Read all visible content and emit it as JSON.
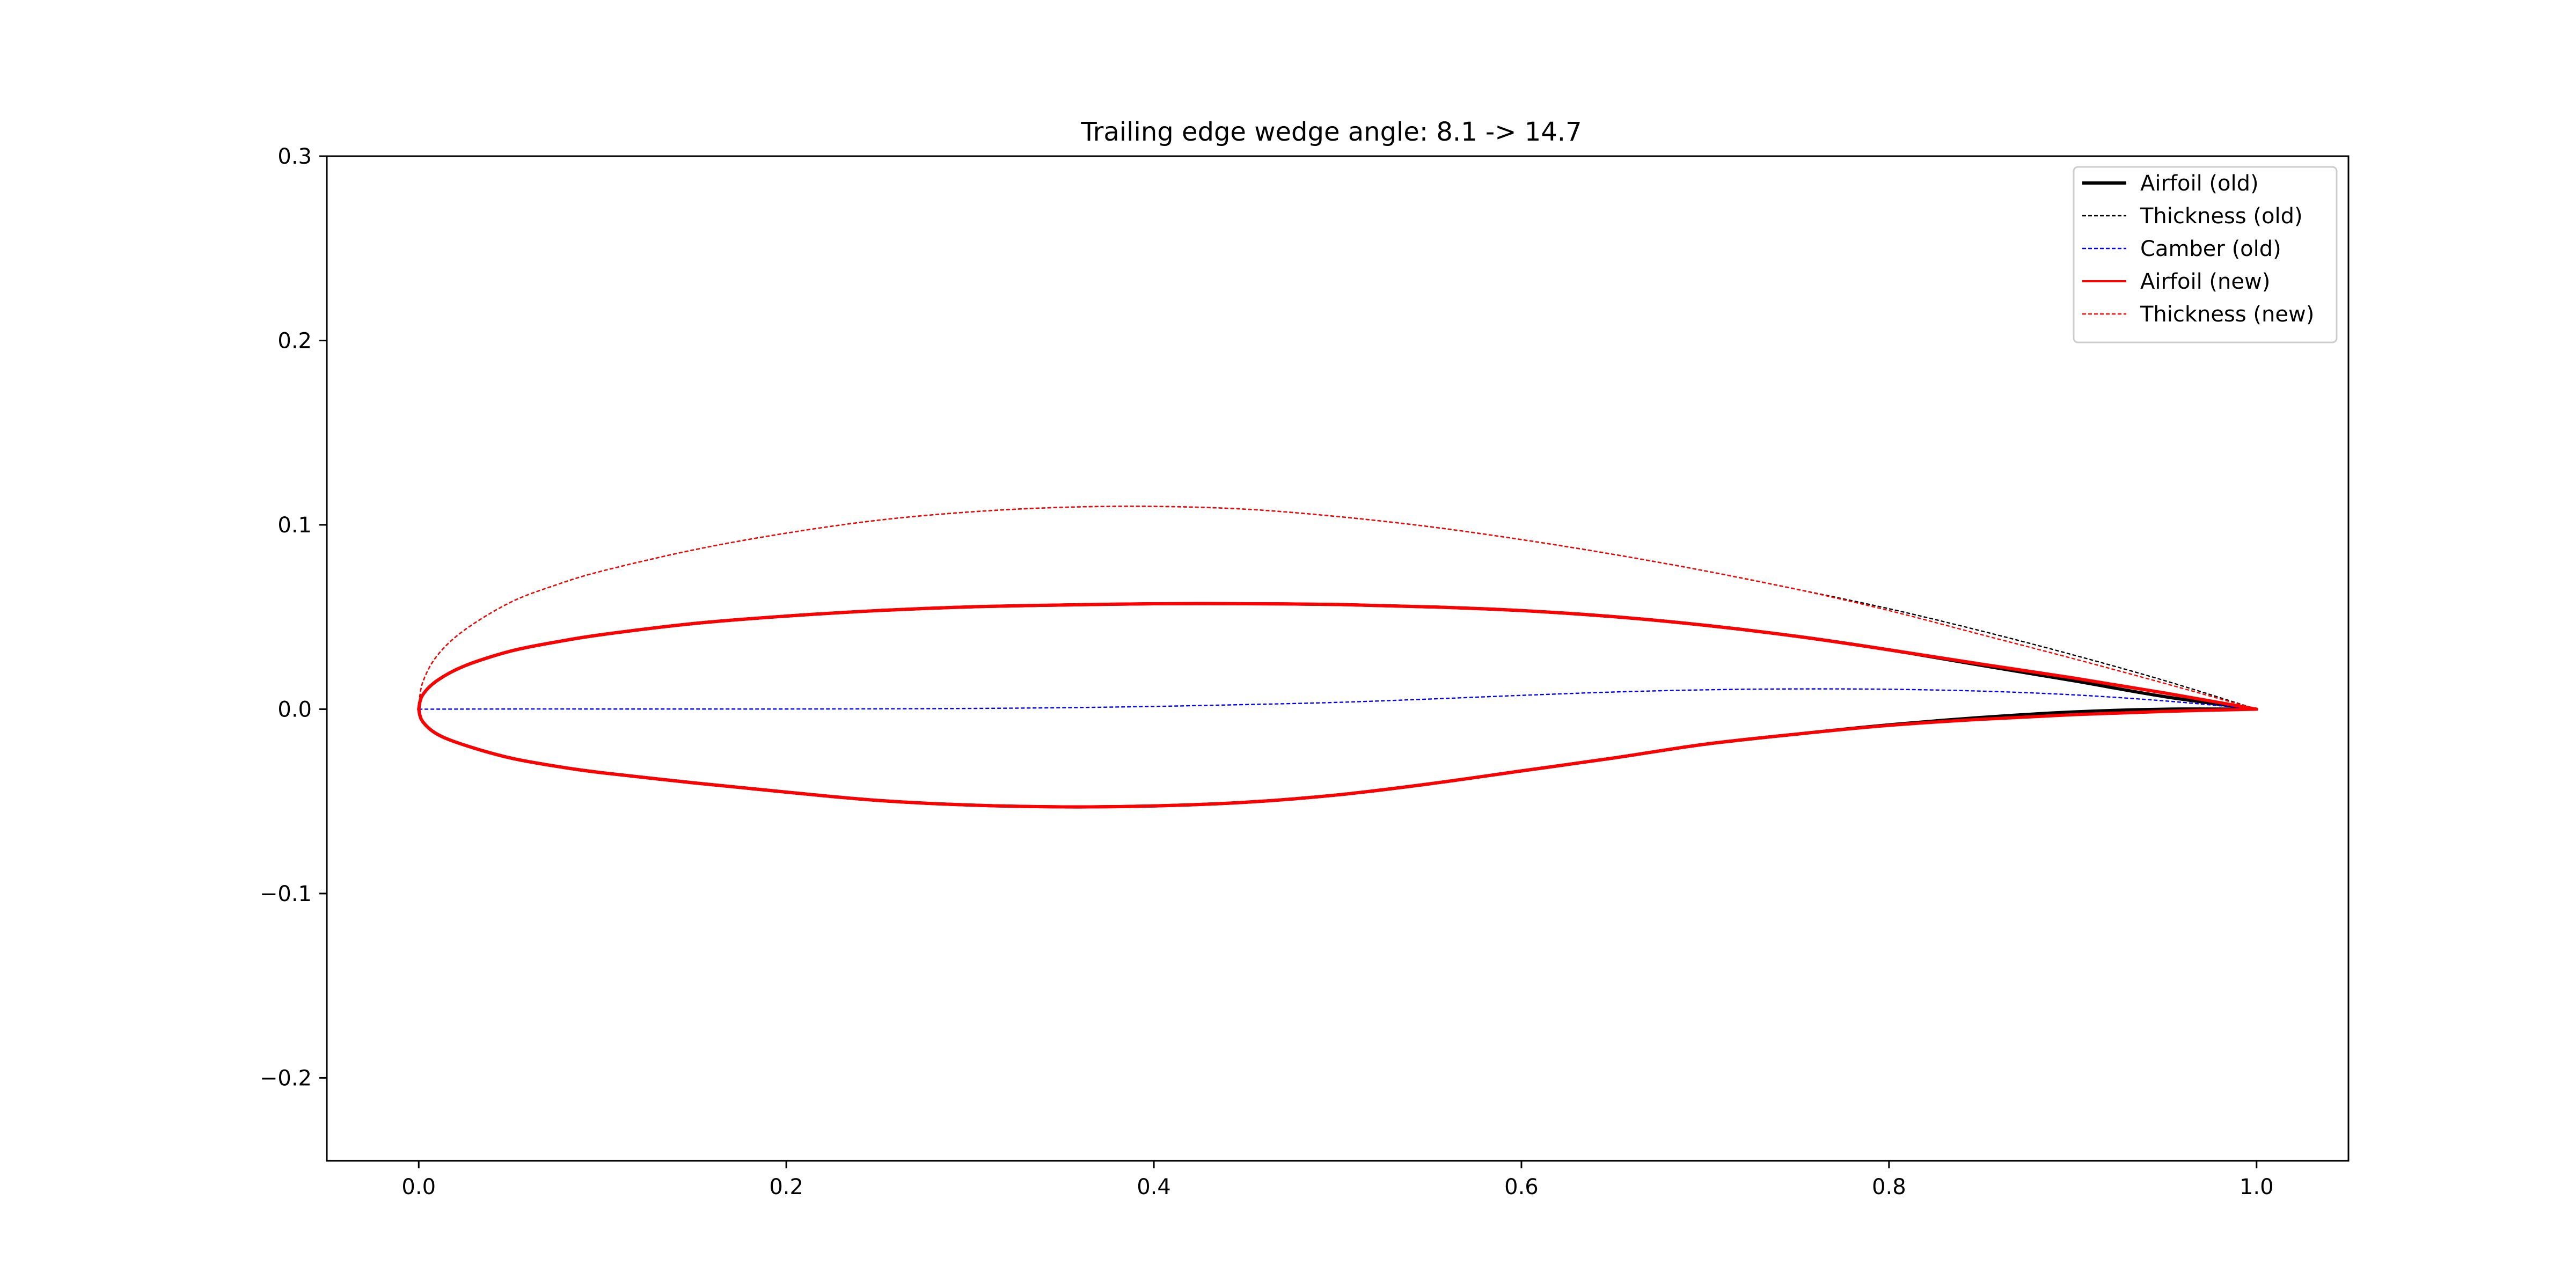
{
  "chart_data": {
    "type": "line",
    "title": "Trailing edge wedge angle: 8.1 -> 14.7",
    "xlabel": "",
    "ylabel": "",
    "xlim": [
      -0.05,
      1.05
    ],
    "ylim": [
      -0.245,
      0.3
    ],
    "x_ticks": [
      0.0,
      0.2,
      0.4,
      0.6,
      0.8,
      1.0
    ],
    "x_tick_labels": [
      "0.0",
      "0.2",
      "0.4",
      "0.6",
      "0.8",
      "1.0"
    ],
    "y_ticks": [
      -0.2,
      -0.1,
      0.0,
      0.1,
      0.2,
      0.3
    ],
    "y_tick_labels": [
      "−0.2",
      "−0.1",
      "0.0",
      "0.1",
      "0.2",
      "0.3"
    ],
    "grid": false,
    "legend_position": "top-right",
    "series": [
      {
        "name": "Airfoil (old)",
        "color": "#000000",
        "style": "solid",
        "upper": {
          "x": [
            0.0,
            0.002,
            0.01,
            0.025,
            0.05,
            0.075,
            0.1,
            0.15,
            0.2,
            0.25,
            0.3,
            0.35,
            0.4,
            0.45,
            0.5,
            0.55,
            0.6,
            0.65,
            0.7,
            0.75,
            0.8,
            0.85,
            0.9,
            0.95,
            1.0
          ],
          "y": [
            0.0,
            0.0075,
            0.0155,
            0.0235,
            0.0315,
            0.0365,
            0.0405,
            0.0465,
            0.0505,
            0.0535,
            0.0555,
            0.0565,
            0.0572,
            0.0572,
            0.0568,
            0.0555,
            0.0535,
            0.0502,
            0.0455,
            0.0395,
            0.0322,
            0.0238,
            0.0155,
            0.0068,
            0.0
          ]
        },
        "lower": {
          "x": [
            0.0,
            0.002,
            0.01,
            0.025,
            0.05,
            0.075,
            0.1,
            0.15,
            0.2,
            0.25,
            0.3,
            0.35,
            0.4,
            0.45,
            0.5,
            0.55,
            0.6,
            0.65,
            0.7,
            0.75,
            0.8,
            0.85,
            0.9,
            0.95,
            1.0
          ],
          "y": [
            0.0,
            -0.0065,
            -0.0135,
            -0.0195,
            -0.0265,
            -0.031,
            -0.0345,
            -0.04,
            -0.045,
            -0.0495,
            -0.052,
            -0.053,
            -0.0525,
            -0.0505,
            -0.0465,
            -0.0405,
            -0.0335,
            -0.0265,
            -0.019,
            -0.0135,
            -0.0085,
            -0.0045,
            -0.0015,
            0.0,
            0.0
          ]
        }
      },
      {
        "name": "Thickness (old)",
        "color": "#000000",
        "style": "dashed",
        "x": [
          0.0,
          0.002,
          0.01,
          0.025,
          0.05,
          0.075,
          0.1,
          0.15,
          0.2,
          0.25,
          0.3,
          0.35,
          0.4,
          0.45,
          0.5,
          0.55,
          0.6,
          0.65,
          0.7,
          0.75,
          0.8,
          0.85,
          0.9,
          0.95,
          1.0
        ],
        "y": [
          0.0,
          0.014,
          0.029,
          0.043,
          0.058,
          0.0675,
          0.075,
          0.0865,
          0.0955,
          0.1025,
          0.107,
          0.1095,
          0.11,
          0.1085,
          0.1045,
          0.099,
          0.092,
          0.084,
          0.075,
          0.065,
          0.0545,
          0.0425,
          0.0295,
          0.0155,
          0.0
        ]
      },
      {
        "name": "Camber (old)",
        "color": "#0000ff",
        "style": "dashed",
        "x": [
          0.0,
          0.05,
          0.1,
          0.15,
          0.2,
          0.25,
          0.3,
          0.35,
          0.4,
          0.45,
          0.5,
          0.55,
          0.6,
          0.65,
          0.7,
          0.75,
          0.8,
          0.85,
          0.9,
          0.95,
          1.0
        ],
        "y": [
          0.0,
          0.0001,
          0.0001,
          0.0001,
          0.0001,
          0.0002,
          0.0004,
          0.0008,
          0.0015,
          0.0025,
          0.0037,
          0.0055,
          0.0075,
          0.0093,
          0.0105,
          0.011,
          0.0108,
          0.0098,
          0.0078,
          0.0045,
          0.0
        ]
      },
      {
        "name": "Airfoil (new)",
        "color": "#ff0000",
        "style": "solid",
        "upper": {
          "x": [
            0.0,
            0.002,
            0.01,
            0.025,
            0.05,
            0.075,
            0.1,
            0.15,
            0.2,
            0.25,
            0.3,
            0.35,
            0.4,
            0.45,
            0.5,
            0.55,
            0.6,
            0.65,
            0.7,
            0.75,
            0.8,
            0.85,
            0.9,
            0.95,
            1.0
          ],
          "y": [
            0.0,
            0.0075,
            0.0155,
            0.0235,
            0.0315,
            0.0365,
            0.0405,
            0.0465,
            0.0505,
            0.0535,
            0.0555,
            0.0565,
            0.0572,
            0.0572,
            0.0568,
            0.0555,
            0.0535,
            0.0502,
            0.0455,
            0.0395,
            0.0322,
            0.0245,
            0.017,
            0.0088,
            0.0
          ]
        },
        "lower": {
          "x": [
            0.0,
            0.002,
            0.01,
            0.025,
            0.05,
            0.075,
            0.1,
            0.15,
            0.2,
            0.25,
            0.3,
            0.35,
            0.4,
            0.45,
            0.5,
            0.55,
            0.6,
            0.65,
            0.7,
            0.75,
            0.8,
            0.85,
            0.9,
            0.95,
            1.0
          ],
          "y": [
            0.0,
            -0.0065,
            -0.0135,
            -0.0195,
            -0.0265,
            -0.031,
            -0.0345,
            -0.04,
            -0.045,
            -0.0495,
            -0.052,
            -0.053,
            -0.0525,
            -0.0505,
            -0.0465,
            -0.0405,
            -0.0335,
            -0.0265,
            -0.019,
            -0.0135,
            -0.0088,
            -0.0055,
            -0.003,
            -0.0012,
            0.0
          ]
        }
      },
      {
        "name": "Thickness (new)",
        "color": "#ff0000",
        "style": "dashed",
        "x": [
          0.0,
          0.002,
          0.01,
          0.025,
          0.05,
          0.075,
          0.1,
          0.15,
          0.2,
          0.25,
          0.3,
          0.35,
          0.4,
          0.45,
          0.5,
          0.55,
          0.6,
          0.65,
          0.7,
          0.75,
          0.8,
          0.85,
          0.9,
          0.95,
          1.0
        ],
        "y": [
          0.0,
          0.014,
          0.029,
          0.043,
          0.058,
          0.0675,
          0.075,
          0.0865,
          0.0955,
          0.1025,
          0.107,
          0.1095,
          0.11,
          0.1085,
          0.1045,
          0.099,
          0.092,
          0.084,
          0.075,
          0.065,
          0.0535,
          0.0405,
          0.0275,
          0.014,
          0.0
        ]
      }
    ]
  }
}
